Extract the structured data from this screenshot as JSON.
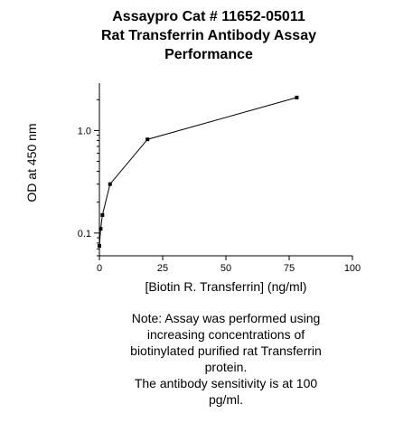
{
  "chart_data": {
    "type": "line",
    "title_lines": [
      "Assaypro Cat # 11652-05011",
      "Rat Transferrin Antibody Assay",
      "Performance"
    ],
    "xlabel": "[Biotin R. Transferrin] (ng/ml)",
    "ylabel": "OD at 450 nm",
    "xlim": [
      0,
      100
    ],
    "ylim": [
      0.06,
      2.9
    ],
    "yscale": "log",
    "x_ticks": [
      0,
      25,
      50,
      75,
      100
    ],
    "x_tick_labels": [
      "0",
      "25",
      "50",
      "75",
      "100"
    ],
    "y_ticks": [
      0.1,
      1.0
    ],
    "y_tick_labels": [
      "0.1",
      "1.0"
    ],
    "series": [
      {
        "x": [
          0,
          0.5,
          1.2,
          4.2,
          19,
          78
        ],
        "y": [
          0.075,
          0.11,
          0.15,
          0.3,
          0.82,
          2.1
        ]
      }
    ],
    "grid": false,
    "colors": {
      "line": "#000000",
      "marker": "#000000",
      "axis": "#000000"
    }
  },
  "note_lines": [
    "Note: Assay was performed using",
    "increasing concentrations of",
    "biotinylated purified rat Transferrin",
    "protein.",
    "The antibody sensitivity is at 100",
    "pg/ml."
  ]
}
